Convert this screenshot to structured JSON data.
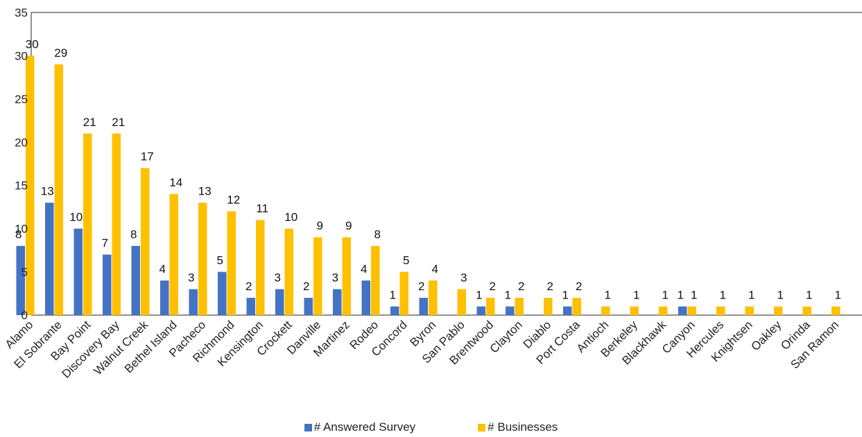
{
  "chart_data": {
    "type": "bar",
    "categories": [
      "Alamo",
      "El Sobrante",
      "Bay Point",
      "Discovery Bay",
      "Walnut Creek",
      "Bethel Island",
      "Pacheco",
      "Richmond",
      "Kensington",
      "Crockett",
      "Danville",
      "Martinez",
      "Rodeo",
      "Concord",
      "Byron",
      "San Pablo",
      "Brentwood",
      "Clayton",
      "Diablo",
      "Port Costa",
      "Antioch",
      "Berkeley",
      "Blackhawk",
      "Canyon",
      "Hercules",
      "Knightsen",
      "Oakley",
      "Orinda",
      "San Ramon"
    ],
    "series": [
      {
        "name": "# Answered Survey",
        "color": "#4472C4",
        "values": [
          8,
          13,
          10,
          7,
          8,
          4,
          3,
          5,
          2,
          3,
          2,
          3,
          4,
          1,
          2,
          null,
          1,
          1,
          null,
          1,
          null,
          null,
          null,
          1,
          null,
          null,
          null,
          null,
          null
        ]
      },
      {
        "name": "# Businesses",
        "color": "#FFC000",
        "values": [
          30,
          29,
          21,
          21,
          17,
          14,
          13,
          12,
          11,
          10,
          9,
          9,
          8,
          5,
          4,
          3,
          2,
          2,
          2,
          2,
          1,
          1,
          1,
          1,
          1,
          1,
          1,
          1,
          1
        ]
      }
    ],
    "yticks": [
      "0",
      "5",
      "10",
      "15",
      "20",
      "25",
      "30",
      "35"
    ],
    "ylim": [
      0,
      35
    ],
    "legend_position": "bottom",
    "grid": false
  }
}
